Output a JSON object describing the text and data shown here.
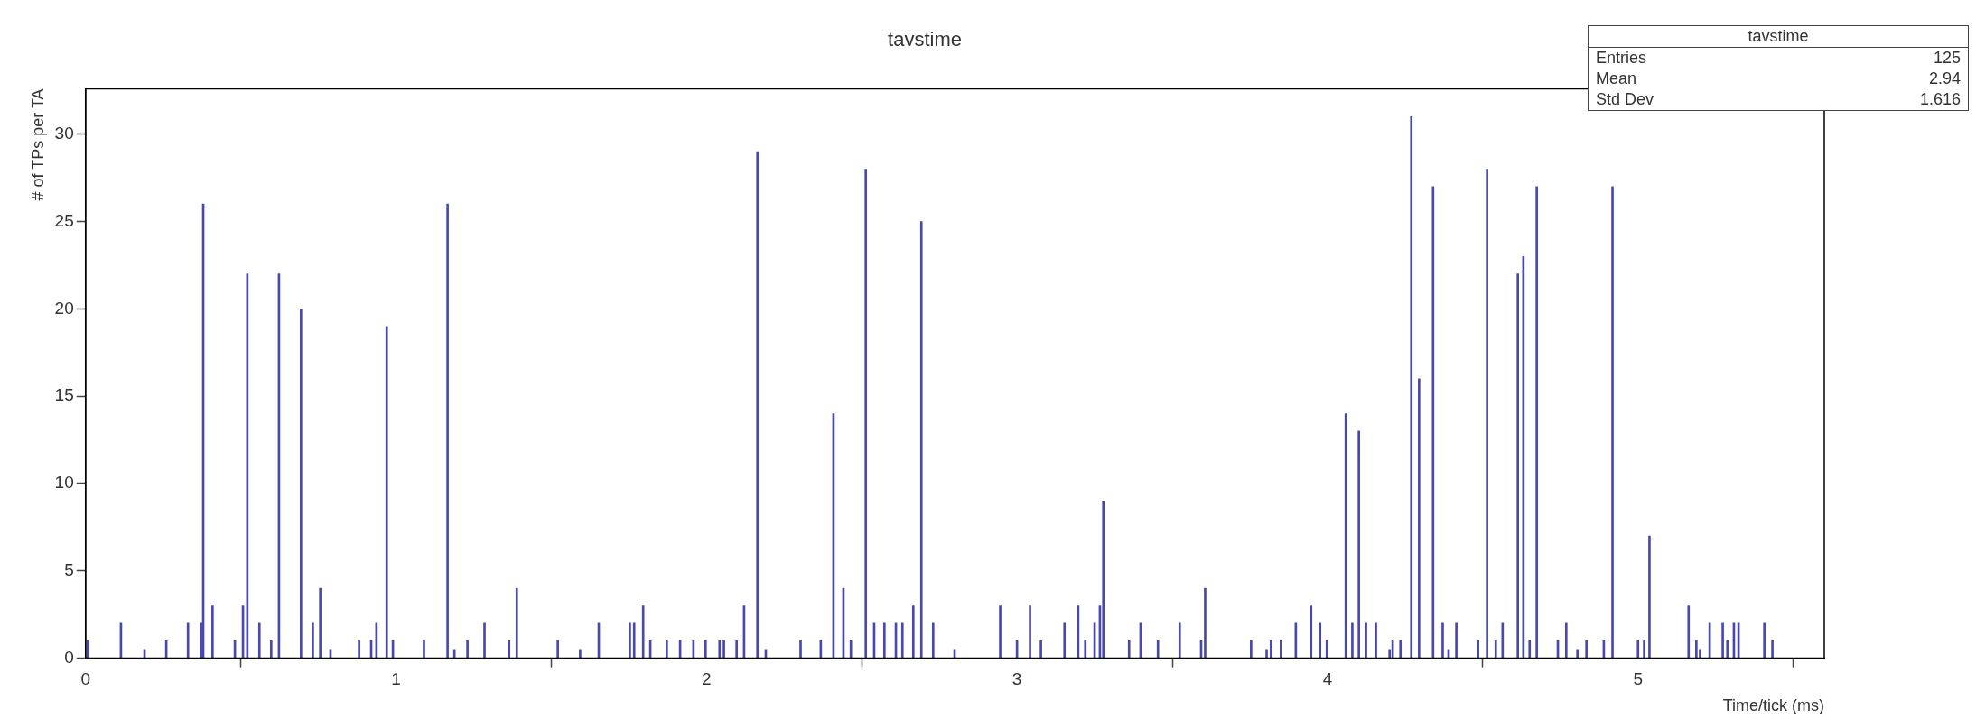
{
  "chart_data": {
    "type": "bar",
    "title": "tavstime",
    "xlabel": "Time/tick (ms)",
    "ylabel": "# of TPs per TA",
    "annotations": [
      "tavstime",
      "Entries",
      "125",
      "Mean",
      "2.94",
      "Std Dev",
      "1.616"
    ],
    "color": "#4848b0",
    "x": [
      0.007,
      0.114,
      0.19,
      0.26,
      0.33,
      0.372,
      0.379,
      0.409,
      0.481,
      0.507,
      0.521,
      0.56,
      0.598,
      0.623,
      0.694,
      0.732,
      0.756,
      0.789,
      0.881,
      0.92,
      0.937,
      0.97,
      0.99,
      1.09,
      1.166,
      1.188,
      1.23,
      1.285,
      1.364,
      1.389,
      1.521,
      1.593,
      1.653,
      1.753,
      1.767,
      1.796,
      1.819,
      1.872,
      1.915,
      1.958,
      1.997,
      2.042,
      2.056,
      2.097,
      2.121,
      2.164,
      2.191,
      2.303,
      2.368,
      2.409,
      2.441,
      2.465,
      2.513,
      2.54,
      2.573,
      2.61,
      2.631,
      2.666,
      2.692,
      2.73,
      2.799,
      2.946,
      3.0,
      3.042,
      3.077,
      3.153,
      3.197,
      3.22,
      3.25,
      3.267,
      3.278,
      3.361,
      3.398,
      3.454,
      3.524,
      3.593,
      3.606,
      3.754,
      3.804,
      3.818,
      3.85,
      3.898,
      3.947,
      3.976,
      3.998,
      4.059,
      4.08,
      4.101,
      4.124,
      4.156,
      4.2,
      4.21,
      4.235,
      4.27,
      4.295,
      4.34,
      4.371,
      4.39,
      4.415,
      4.485,
      4.514,
      4.542,
      4.564,
      4.613,
      4.631,
      4.651,
      4.674,
      4.742,
      4.769,
      4.805,
      4.834,
      4.89,
      4.918,
      5.0,
      5.02,
      5.037,
      5.163,
      5.188,
      5.2,
      5.231,
      5.273,
      5.288,
      5.309,
      5.324,
      5.407,
      5.433
    ],
    "values": [
      1,
      2,
      0.5,
      1,
      2,
      2,
      26,
      3,
      1,
      3,
      22,
      2,
      1,
      22,
      20,
      2,
      4,
      0.5,
      1,
      1,
      2,
      19,
      1,
      1,
      26,
      0.5,
      1,
      2,
      1,
      4,
      1,
      0.5,
      2,
      2,
      2,
      3,
      1,
      1,
      1,
      1,
      1,
      1,
      1,
      1,
      3,
      29,
      0.5,
      1,
      1,
      14,
      4,
      1,
      28,
      2,
      2,
      2,
      2,
      3,
      25,
      2,
      0.5,
      3,
      1,
      3,
      1,
      2,
      3,
      1,
      2,
      3,
      9,
      1,
      2,
      1,
      2,
      1,
      4,
      1,
      0.5,
      1,
      1,
      2,
      3,
      2,
      1,
      14,
      2,
      13,
      2,
      2,
      0.5,
      1,
      1,
      31,
      16,
      27,
      2,
      0.5,
      2,
      1,
      28,
      1,
      2,
      22,
      23,
      1,
      27,
      1,
      2,
      0.5,
      1,
      1,
      27,
      1,
      1,
      7,
      3,
      1,
      0.5,
      2,
      2,
      1,
      2,
      2,
      2,
      1
    ],
    "xlim": [
      0,
      5.6
    ],
    "xticks": [
      0,
      1,
      2,
      3,
      4,
      5
    ],
    "ylim": [
      0,
      32.6
    ],
    "yticks": [
      0,
      5,
      10,
      15,
      20,
      25,
      30
    ],
    "grid": false,
    "legend": false
  }
}
